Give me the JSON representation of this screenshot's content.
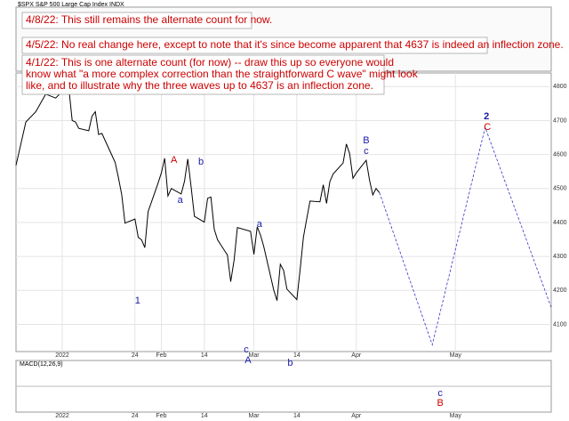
{
  "chart_data": {
    "type": "line",
    "title": "$SPX S&P 500 Large Cap Index  INDX",
    "xlim": [
      -12,
      150
    ],
    "ylim": [
      4020,
      4840
    ],
    "xticks": [
      {
        "value": 2,
        "label": "2022"
      },
      {
        "value": 24,
        "label": "24"
      },
      {
        "value": 32,
        "label": "Feb"
      },
      {
        "value": 45,
        "label": "14"
      },
      {
        "value": 60,
        "label": "Mar"
      },
      {
        "value": 73,
        "label": "14"
      },
      {
        "value": 91,
        "label": "Apr"
      },
      {
        "value": 121,
        "label": "May"
      }
    ],
    "yticks": [
      4100,
      4200,
      4300,
      4400,
      4500,
      4600,
      4700,
      4800
    ],
    "grid": true,
    "series": [
      {
        "color": "#000000",
        "x": [
          -12,
          -9,
          -6,
          -3,
          0,
          3,
          4,
          5,
          6,
          7,
          10,
          11,
          12,
          13,
          14,
          18,
          19,
          20,
          21,
          24,
          25,
          26,
          27,
          28,
          31,
          32,
          33,
          34,
          35,
          38,
          39,
          40,
          41,
          42,
          45,
          46,
          47,
          48,
          49,
          52,
          53,
          54,
          55,
          59,
          60,
          61,
          62,
          63,
          66,
          67,
          68,
          69,
          70,
          73,
          74,
          75,
          76,
          77,
          80,
          81,
          82,
          83,
          84,
          87,
          88,
          89,
          90,
          91,
          94,
          95,
          96,
          97,
          98
        ],
        "values": [
          4568,
          4696,
          4726,
          4778,
          4766,
          4796,
          4793,
          4700,
          4696,
          4677,
          4670,
          4713,
          4726,
          4659,
          4662,
          4577,
          4532,
          4482,
          4398,
          4410,
          4356,
          4349,
          4326,
          4432,
          4516,
          4546,
          4589,
          4478,
          4500,
          4484,
          4521,
          4587,
          4504,
          4418,
          4401,
          4471,
          4475,
          4380,
          4349,
          4304,
          4226,
          4289,
          4385,
          4374,
          4306,
          4387,
          4363,
          4329,
          4201,
          4170,
          4277,
          4259,
          4204,
          4173,
          4262,
          4357,
          4411,
          4463,
          4461,
          4511,
          4456,
          4520,
          4543,
          4575,
          4631,
          4602,
          4530,
          4546,
          4583,
          4525,
          4481,
          4500,
          4488
        ]
      },
      {
        "color": "#3333cc",
        "dashed": true,
        "x": [
          98,
          114,
          130,
          150
        ],
        "values": [
          4488,
          4040,
          4680,
          4150
        ]
      }
    ],
    "wave_labels": [
      {
        "text": "A",
        "color": "#cc0000",
        "x": 35.8,
        "y": 4583
      },
      {
        "text": "b",
        "color": "#1a1aa6",
        "x": 44,
        "y": 4578
      },
      {
        "text": "a",
        "color": "#1a1aa6",
        "x": 37.7,
        "y": 4465
      },
      {
        "text": "1",
        "color": "#1a1aa6",
        "x": 24.8,
        "y": 4169
      },
      {
        "text": "a",
        "color": "#1a1aa6",
        "x": 61.7,
        "y": 4394
      },
      {
        "text": "c",
        "color": "#1a1aa6",
        "x": 57.7,
        "y": 4025
      },
      {
        "text": "A",
        "color": "#1a1aa6",
        "x": 58.2,
        "y": 3994
      },
      {
        "text": "b",
        "color": "#1a1aa6",
        "x": 71,
        "y": 3986
      },
      {
        "text": "B",
        "color": "#1a1aa6",
        "x": 94,
        "y": 4640
      },
      {
        "text": "c",
        "color": "#1a1aa6",
        "x": 94,
        "y": 4609
      },
      {
        "text": "2",
        "color": "#1a1aa6",
        "x": 130.4,
        "y": 4711
      },
      {
        "text": "C",
        "color": "#cc0000",
        "x": 130.7,
        "y": 4680
      },
      {
        "text": "c",
        "color": "#1a1aa6",
        "x": 116.4,
        "y": 3897
      },
      {
        "text": "B",
        "color": "#cc0000",
        "x": 116.4,
        "y": 3868
      }
    ],
    "annotations": [
      [
        "4/8/22:  This still remains the alternate count for now."
      ],
      [
        "4/5/22:  No real change here, except to note that it's since become apparent that 4637 is indeed an inflection zone."
      ],
      [
        "4/1/22:  This is one alternate count (for now) -- draw this up so everyone would",
        "know what \"a more complex correction than the straightforward C wave\" might look",
        "like, and to illustrate why the three waves up to 4637 is an inflection zone."
      ]
    ],
    "macd_label": "MACD(12,26,9)"
  }
}
